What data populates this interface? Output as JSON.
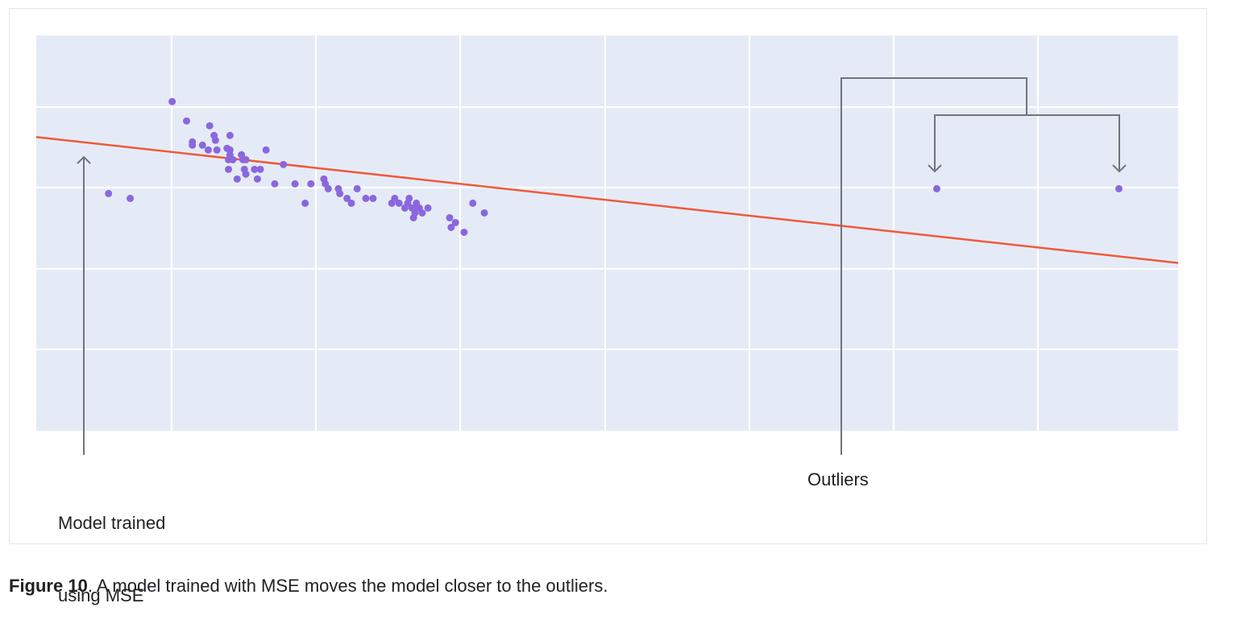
{
  "chart_data": {
    "type": "scatter",
    "grid": true,
    "xlim": [
      0,
      79
    ],
    "ylim": [
      0,
      49
    ],
    "points": {
      "color": "#8a67dd",
      "data": [
        [
          9.4,
          40.8
        ],
        [
          10.4,
          38.4
        ],
        [
          10.8,
          35.8
        ],
        [
          10.8,
          35.4
        ],
        [
          11.5,
          35.4
        ],
        [
          11.9,
          34.8
        ],
        [
          12.0,
          37.8
        ],
        [
          12.3,
          36.6
        ],
        [
          12.4,
          36.0
        ],
        [
          12.5,
          34.8
        ],
        [
          13.2,
          35.0
        ],
        [
          13.3,
          33.6
        ],
        [
          13.3,
          32.4
        ],
        [
          13.4,
          34.2
        ],
        [
          13.4,
          36.6
        ],
        [
          13.4,
          34.8
        ],
        [
          13.6,
          33.6
        ],
        [
          13.9,
          31.2
        ],
        [
          14.2,
          34.2
        ],
        [
          14.3,
          33.6
        ],
        [
          14.4,
          32.4
        ],
        [
          14.5,
          31.8
        ],
        [
          14.5,
          33.6
        ],
        [
          15.1,
          32.4
        ],
        [
          15.3,
          31.2
        ],
        [
          15.5,
          32.4
        ],
        [
          15.9,
          34.8
        ],
        [
          16.5,
          30.6
        ],
        [
          17.1,
          33.0
        ],
        [
          17.9,
          30.6
        ],
        [
          18.6,
          28.2
        ],
        [
          19.0,
          30.6
        ],
        [
          19.9,
          31.2
        ],
        [
          20.0,
          30.6
        ],
        [
          20.2,
          30.0
        ],
        [
          20.9,
          30.0
        ],
        [
          21.0,
          29.4
        ],
        [
          21.5,
          28.8
        ],
        [
          21.8,
          28.2
        ],
        [
          22.2,
          30.0
        ],
        [
          22.8,
          28.8
        ],
        [
          23.3,
          28.8
        ],
        [
          24.6,
          28.2
        ],
        [
          24.8,
          28.8
        ],
        [
          25.1,
          28.2
        ],
        [
          25.5,
          27.6
        ],
        [
          25.7,
          28.2
        ],
        [
          25.8,
          28.8
        ],
        [
          26.0,
          27.6
        ],
        [
          26.2,
          27.6
        ],
        [
          26.3,
          28.2
        ],
        [
          26.5,
          27.6
        ],
        [
          26.1,
          26.4
        ],
        [
          26.2,
          27.0
        ],
        [
          26.7,
          27.0
        ],
        [
          27.1,
          27.6
        ],
        [
          28.6,
          26.4
        ],
        [
          28.7,
          25.2
        ],
        [
          29.0,
          25.8
        ],
        [
          29.6,
          24.6
        ],
        [
          30.2,
          28.2
        ],
        [
          31.0,
          27.0
        ],
        [
          5.0,
          29.4
        ],
        [
          6.5,
          28.8
        ],
        [
          62.3,
          30.0
        ],
        [
          74.9,
          30.0
        ]
      ]
    },
    "fit_line": {
      "color": "#ee5a3a",
      "x": [
        0,
        79
      ],
      "y": [
        36.4,
        20.8
      ]
    }
  },
  "annotations": {
    "model_label_line1": "Model trained",
    "model_label_line2": "using MSE",
    "outliers_label": "Outliers"
  },
  "caption": {
    "bold": "Figure 10",
    "text": ". A model trained with MSE moves the model closer to the outliers."
  },
  "colors": {
    "plot_background": "#e5ebf6",
    "grid": "#ffffff",
    "annotation_line": "#70757a"
  }
}
